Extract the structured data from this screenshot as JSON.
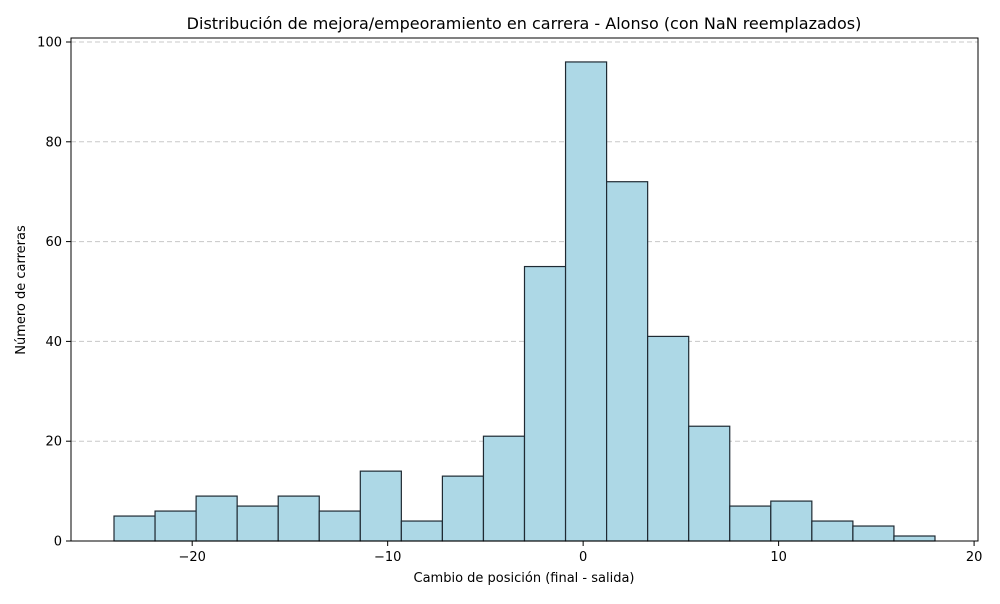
{
  "chart_data": {
    "type": "bar",
    "title": "Distribución de mejora/empeoramiento en carrera - Alonso (con NaN reemplazados)",
    "xlabel": "Cambio de posición (final - salida)",
    "ylabel": "Número de carreras",
    "xlim": [
      -26.2,
      20.2
    ],
    "ylim": [
      0,
      100.8
    ],
    "xticks": [
      -20,
      -10,
      0,
      10,
      20
    ],
    "xtick_labels": [
      "−20",
      "−10",
      "0",
      "10",
      "20"
    ],
    "yticks": [
      0,
      20,
      40,
      60,
      80,
      100
    ],
    "ytick_labels": [
      "0",
      "20",
      "40",
      "60",
      "80",
      "100"
    ],
    "bin_edges": [
      -24,
      -21.9,
      -19.8,
      -17.7,
      -15.6,
      -13.5,
      -11.4,
      -9.3,
      -7.2,
      -5.1,
      -3.0,
      -0.9,
      1.2,
      3.3,
      5.4,
      7.5,
      9.6,
      11.7,
      13.8,
      15.9,
      18.0
    ],
    "values": [
      5,
      6,
      9,
      7,
      9,
      6,
      14,
      4,
      13,
      21,
      55,
      96,
      72,
      41,
      23,
      7,
      8,
      4,
      3,
      1
    ],
    "bar_color": "#add8e6",
    "bar_edge_color": "#1f2a33",
    "grid": "y-dashed"
  }
}
